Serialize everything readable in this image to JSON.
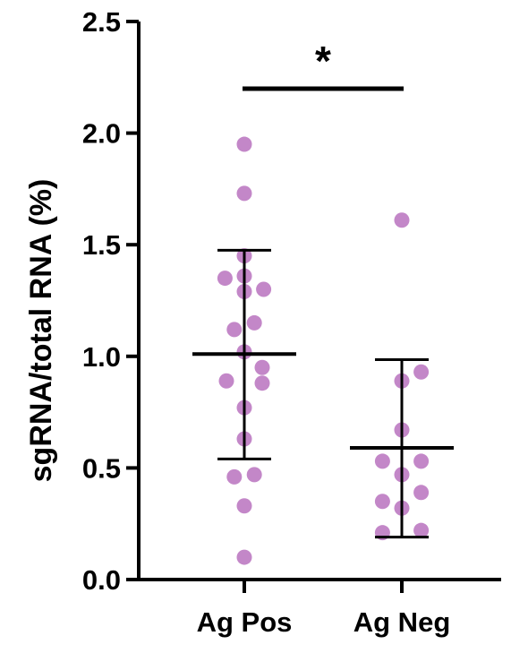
{
  "chart_data": {
    "type": "scatter",
    "ylabel": "sgRNA/total RNA (%)",
    "ylim": [
      0,
      2.5
    ],
    "yticks": [
      0.0,
      0.5,
      1.0,
      1.5,
      2.0,
      2.5
    ],
    "ytick_labels": [
      "0.0",
      "0.5",
      "1.0",
      "1.5",
      "2.0",
      "2.5"
    ],
    "categories": [
      "Ag Pos",
      "Ag Neg"
    ],
    "point_color": "#c387c8",
    "significance": "*",
    "series": [
      {
        "category": "Ag Pos",
        "points": [
          {
            "dx": 0.0,
            "y": 1.95
          },
          {
            "dx": 0.0,
            "y": 1.73
          },
          {
            "dx": 0.0,
            "y": 1.45
          },
          {
            "dx": -0.27,
            "y": 1.35
          },
          {
            "dx": 0.0,
            "y": 1.36
          },
          {
            "dx": 0.0,
            "y": 1.29
          },
          {
            "dx": 0.27,
            "y": 1.3
          },
          {
            "dx": -0.14,
            "y": 1.12
          },
          {
            "dx": 0.14,
            "y": 1.15
          },
          {
            "dx": 0.0,
            "y": 1.02
          },
          {
            "dx": -0.25,
            "y": 0.89
          },
          {
            "dx": 0.25,
            "y": 0.95
          },
          {
            "dx": 0.25,
            "y": 0.88
          },
          {
            "dx": 0.0,
            "y": 0.77
          },
          {
            "dx": 0.0,
            "y": 0.63
          },
          {
            "dx": -0.14,
            "y": 0.46
          },
          {
            "dx": 0.14,
            "y": 0.47
          },
          {
            "dx": 0.0,
            "y": 0.33
          },
          {
            "dx": 0.0,
            "y": 0.1
          }
        ],
        "mean": 1.01,
        "sd_upper": 1.475,
        "sd_lower": 0.54
      },
      {
        "category": "Ag Neg",
        "points": [
          {
            "dx": 0.0,
            "y": 1.61
          },
          {
            "dx": 0.27,
            "y": 0.93
          },
          {
            "dx": 0.0,
            "y": 0.89
          },
          {
            "dx": 0.0,
            "y": 0.67
          },
          {
            "dx": -0.27,
            "y": 0.53
          },
          {
            "dx": 0.27,
            "y": 0.53
          },
          {
            "dx": 0.0,
            "y": 0.47
          },
          {
            "dx": 0.27,
            "y": 0.39
          },
          {
            "dx": -0.27,
            "y": 0.35
          },
          {
            "dx": 0.0,
            "y": 0.32
          },
          {
            "dx": -0.27,
            "y": 0.21
          },
          {
            "dx": 0.27,
            "y": 0.22
          }
        ],
        "mean": 0.59,
        "sd_upper": 0.985,
        "sd_lower": 0.19
      }
    ]
  }
}
